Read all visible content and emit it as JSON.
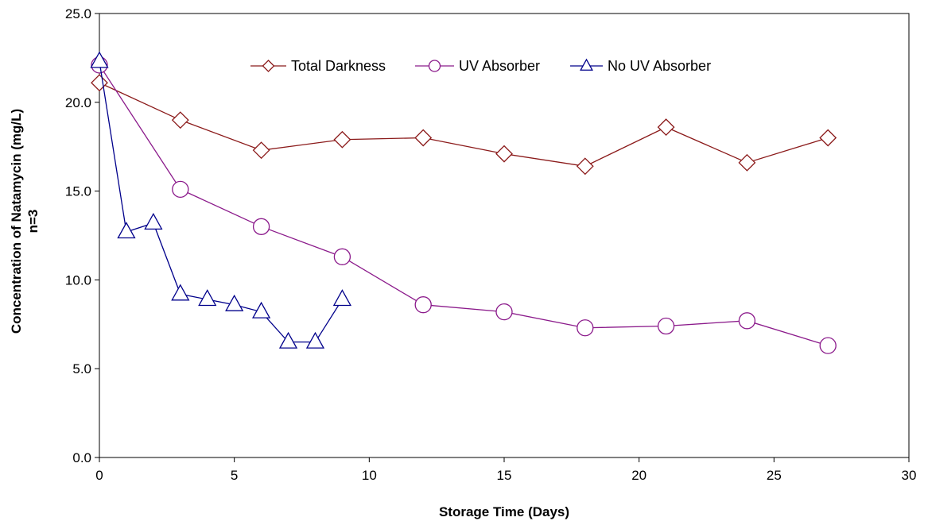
{
  "chart_data": {
    "type": "line",
    "title": "",
    "xlabel": "Storage Time (Days)",
    "ylabel_lines": [
      "Concentration of Natamycin (mg/L)",
      "n=3"
    ],
    "xlim": [
      0,
      30
    ],
    "ylim": [
      0,
      25
    ],
    "x_ticks": [
      0,
      5,
      10,
      15,
      20,
      25,
      30
    ],
    "x_tick_labels": [
      "0",
      "5",
      "10",
      "15",
      "20",
      "25",
      "30"
    ],
    "y_ticks": [
      0,
      5,
      10,
      15,
      20,
      25
    ],
    "y_tick_labels": [
      "0.0",
      "5.0",
      "10.0",
      "15.0",
      "20.0",
      "25.0"
    ],
    "grid": false,
    "legend_position": "top-center",
    "series": [
      {
        "name": "Total Darkness",
        "marker": "diamond",
        "color": "#8b1a1a",
        "x": [
          0,
          3,
          6,
          9,
          12,
          15,
          18,
          21,
          24,
          27
        ],
        "y": [
          21.1,
          19.0,
          17.3,
          17.9,
          18.0,
          17.1,
          16.4,
          18.6,
          16.6,
          18.0
        ]
      },
      {
        "name": "UV Absorber",
        "marker": "circle",
        "color": "#8b1a8b",
        "x": [
          0,
          3,
          6,
          9,
          12,
          15,
          18,
          21,
          24,
          27
        ],
        "y": [
          22.1,
          15.1,
          13.0,
          11.3,
          8.6,
          8.2,
          7.3,
          7.4,
          7.7,
          6.3
        ]
      },
      {
        "name": "No UV Absorber",
        "marker": "triangle",
        "color": "#00008b",
        "x": [
          0,
          1,
          2,
          3,
          4,
          5,
          6,
          7,
          8,
          9
        ],
        "y": [
          22.3,
          12.7,
          13.2,
          9.2,
          8.9,
          8.6,
          8.2,
          6.5,
          6.5,
          8.9
        ]
      }
    ]
  }
}
